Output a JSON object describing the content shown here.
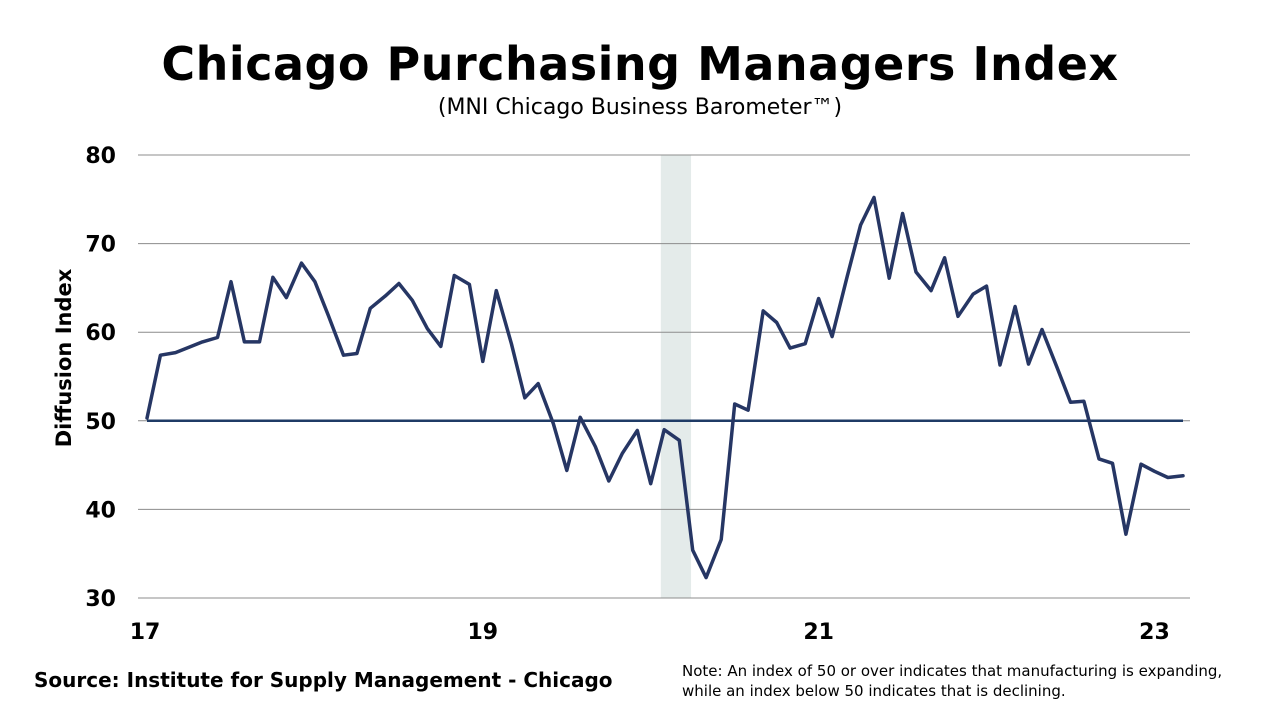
{
  "title": "Chicago Purchasing Managers Index",
  "subtitle": "(MNI Chicago Business Barometer™)",
  "source": "Source: Institute for Supply Management - Chicago",
  "note": "Note: An index of 50 or over indicates that manufacturing is expanding, while an index below 50 indicates that is declining.",
  "colors": {
    "line": "#263664",
    "reference_line": "#1f3b66",
    "recession": "#e4ebea",
    "grid": "#8c8c8c"
  },
  "chart_data": {
    "type": "line",
    "title": "Chicago Purchasing Managers Index",
    "ylabel": "Diffusion Index",
    "xlabel": "",
    "ylim": [
      30,
      80
    ],
    "xlim": [
      2017.0,
      2023.25
    ],
    "yticks": [
      30,
      40,
      50,
      60,
      70,
      80
    ],
    "xticks": [
      {
        "label": "17",
        "value": 2017
      },
      {
        "label": "19",
        "value": 2019
      },
      {
        "label": "21",
        "value": 2021
      },
      {
        "label": "23",
        "value": 2023
      }
    ],
    "grid": true,
    "reference_line": {
      "y": 50
    },
    "shaded_period": {
      "start": 2020.06,
      "end": 2020.24
    },
    "series": [
      {
        "values": [
          [
            2017.0,
            50.3
          ],
          [
            2017.08,
            57.4
          ],
          [
            2017.17,
            57.7
          ],
          [
            2017.25,
            58.3
          ],
          [
            2017.33,
            58.9
          ],
          [
            2017.42,
            59.4
          ],
          [
            2017.5,
            65.7
          ],
          [
            2017.58,
            58.9
          ],
          [
            2017.67,
            58.9
          ],
          [
            2017.75,
            66.2
          ],
          [
            2017.83,
            63.9
          ],
          [
            2017.92,
            67.8
          ],
          [
            2018.0,
            65.7
          ],
          [
            2018.08,
            61.9
          ],
          [
            2018.17,
            57.4
          ],
          [
            2018.25,
            57.6
          ],
          [
            2018.33,
            62.7
          ],
          [
            2018.42,
            64.1
          ],
          [
            2018.5,
            65.5
          ],
          [
            2018.58,
            63.6
          ],
          [
            2018.67,
            60.4
          ],
          [
            2018.75,
            58.4
          ],
          [
            2018.83,
            66.4
          ],
          [
            2018.92,
            65.4
          ],
          [
            2019.0,
            56.7
          ],
          [
            2019.08,
            64.7
          ],
          [
            2019.17,
            58.7
          ],
          [
            2019.25,
            52.6
          ],
          [
            2019.33,
            54.2
          ],
          [
            2019.42,
            49.7
          ],
          [
            2019.5,
            44.4
          ],
          [
            2019.58,
            50.4
          ],
          [
            2019.67,
            47.1
          ],
          [
            2019.75,
            43.2
          ],
          [
            2019.83,
            46.3
          ],
          [
            2019.92,
            48.9
          ],
          [
            2020.0,
            42.9
          ],
          [
            2020.08,
            49.0
          ],
          [
            2020.17,
            47.8
          ],
          [
            2020.25,
            35.4
          ],
          [
            2020.33,
            32.3
          ],
          [
            2020.42,
            36.6
          ],
          [
            2020.5,
            51.9
          ],
          [
            2020.58,
            51.2
          ],
          [
            2020.67,
            62.4
          ],
          [
            2020.75,
            61.1
          ],
          [
            2020.83,
            58.2
          ],
          [
            2020.92,
            58.7
          ],
          [
            2021.0,
            63.8
          ],
          [
            2021.08,
            59.5
          ],
          [
            2021.17,
            66.3
          ],
          [
            2021.25,
            72.1
          ],
          [
            2021.33,
            75.2
          ],
          [
            2021.42,
            66.1
          ],
          [
            2021.5,
            73.4
          ],
          [
            2021.58,
            66.8
          ],
          [
            2021.67,
            64.7
          ],
          [
            2021.75,
            68.4
          ],
          [
            2021.83,
            61.8
          ],
          [
            2021.92,
            64.3
          ],
          [
            2022.0,
            65.2
          ],
          [
            2022.08,
            56.3
          ],
          [
            2022.17,
            62.9
          ],
          [
            2022.25,
            56.4
          ],
          [
            2022.33,
            60.3
          ],
          [
            2022.42,
            56.0
          ],
          [
            2022.5,
            52.1
          ],
          [
            2022.58,
            52.2
          ],
          [
            2022.67,
            45.7
          ],
          [
            2022.75,
            45.2
          ],
          [
            2022.83,
            37.2
          ],
          [
            2022.92,
            45.1
          ],
          [
            2023.0,
            44.3
          ],
          [
            2023.08,
            43.6
          ],
          [
            2023.17,
            43.8
          ]
        ]
      }
    ]
  }
}
